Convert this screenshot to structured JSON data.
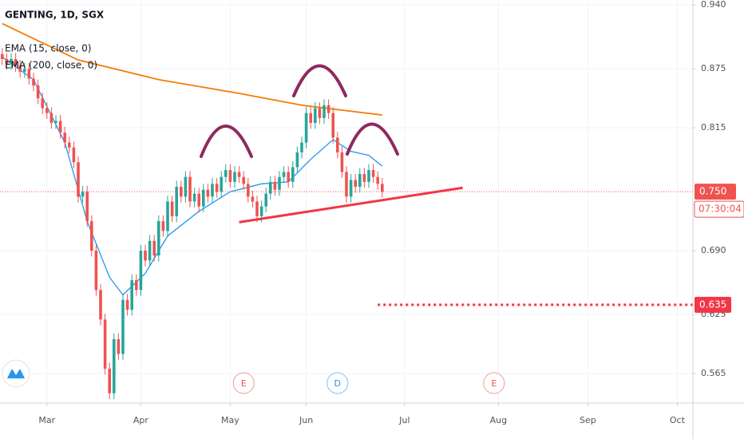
{
  "chart_data": {
    "type": "candlestick",
    "title": "GENTING, 1D, SGX",
    "up_color": "#26a69a",
    "down_color": "#ef5350",
    "grid": true,
    "xlim": [
      -0.5,
      154.5
    ],
    "xticks": [
      {
        "value": 10,
        "label": "Mar"
      },
      {
        "value": 31,
        "label": "Apr"
      },
      {
        "value": 51,
        "label": "May"
      },
      {
        "value": 68,
        "label": "Jun"
      },
      {
        "value": 90,
        "label": "Jul"
      },
      {
        "value": 111,
        "label": "Aug"
      },
      {
        "value": 131,
        "label": "Sep"
      },
      {
        "value": 151,
        "label": "Oct"
      }
    ],
    "ylim": [
      0.535,
      0.945
    ],
    "yticks": [
      {
        "value": 0.94,
        "label": "0.940"
      },
      {
        "value": 0.875,
        "label": "0.875"
      },
      {
        "value": 0.815,
        "label": "0.815"
      },
      {
        "value": 0.69,
        "label": "0.690"
      },
      {
        "value": 0.625,
        "label": "0.625"
      },
      {
        "value": 0.565,
        "label": "0.565"
      }
    ],
    "open": [
      0.89,
      0.885,
      0.88,
      0.885,
      0.878,
      0.872,
      0.875,
      0.865,
      0.858,
      0.845,
      0.835,
      0.83,
      0.82,
      0.822,
      0.81,
      0.8,
      0.795,
      0.78,
      0.745,
      0.75,
      0.72,
      0.69,
      0.65,
      0.62,
      0.57,
      0.545,
      0.6,
      0.585,
      0.64,
      0.63,
      0.66,
      0.65,
      0.69,
      0.68,
      0.7,
      0.685,
      0.72,
      0.71,
      0.74,
      0.725,
      0.755,
      0.745,
      0.765,
      0.74,
      0.748,
      0.735,
      0.752,
      0.745,
      0.758,
      0.75,
      0.765,
      0.772,
      0.76,
      0.77,
      0.765,
      0.758,
      0.745,
      0.74,
      0.725,
      0.735,
      0.748,
      0.76,
      0.752,
      0.765,
      0.77,
      0.76,
      0.775,
      0.79,
      0.8,
      0.83,
      0.82,
      0.835,
      0.825,
      0.838,
      0.83,
      0.805,
      0.79,
      0.77,
      0.745,
      0.762,
      0.755,
      0.768,
      0.76,
      0.772,
      0.765,
      0.758
    ],
    "high": [
      0.896,
      0.891,
      0.891,
      0.891,
      0.884,
      0.881,
      0.881,
      0.871,
      0.864,
      0.851,
      0.841,
      0.836,
      0.828,
      0.828,
      0.816,
      0.806,
      0.801,
      0.786,
      0.756,
      0.756,
      0.726,
      0.696,
      0.656,
      0.626,
      0.576,
      0.606,
      0.606,
      0.646,
      0.646,
      0.666,
      0.666,
      0.696,
      0.696,
      0.706,
      0.706,
      0.726,
      0.726,
      0.746,
      0.746,
      0.761,
      0.761,
      0.771,
      0.771,
      0.754,
      0.754,
      0.758,
      0.758,
      0.764,
      0.764,
      0.771,
      0.778,
      0.778,
      0.776,
      0.776,
      0.771,
      0.764,
      0.751,
      0.746,
      0.741,
      0.754,
      0.766,
      0.766,
      0.771,
      0.776,
      0.776,
      0.781,
      0.796,
      0.806,
      0.836,
      0.836,
      0.841,
      0.841,
      0.844,
      0.844,
      0.836,
      0.811,
      0.796,
      0.776,
      0.768,
      0.768,
      0.774,
      0.774,
      0.778,
      0.778,
      0.771,
      0.764
    ],
    "low": [
      0.879,
      0.874,
      0.874,
      0.872,
      0.866,
      0.866,
      0.859,
      0.852,
      0.839,
      0.829,
      0.824,
      0.814,
      0.814,
      0.804,
      0.794,
      0.789,
      0.774,
      0.739,
      0.739,
      0.714,
      0.684,
      0.644,
      0.614,
      0.564,
      0.539,
      0.539,
      0.579,
      0.579,
      0.624,
      0.624,
      0.644,
      0.644,
      0.674,
      0.674,
      0.679,
      0.679,
      0.704,
      0.704,
      0.719,
      0.719,
      0.739,
      0.739,
      0.734,
      0.734,
      0.729,
      0.729,
      0.739,
      0.739,
      0.744,
      0.744,
      0.759,
      0.754,
      0.754,
      0.759,
      0.752,
      0.739,
      0.734,
      0.719,
      0.719,
      0.729,
      0.742,
      0.746,
      0.746,
      0.759,
      0.754,
      0.754,
      0.769,
      0.784,
      0.794,
      0.814,
      0.814,
      0.819,
      0.819,
      0.824,
      0.799,
      0.784,
      0.764,
      0.739,
      0.739,
      0.749,
      0.749,
      0.754,
      0.754,
      0.759,
      0.752,
      0.744
    ],
    "close": [
      0.885,
      0.88,
      0.885,
      0.878,
      0.872,
      0.875,
      0.865,
      0.858,
      0.845,
      0.835,
      0.83,
      0.82,
      0.822,
      0.81,
      0.8,
      0.795,
      0.78,
      0.745,
      0.75,
      0.72,
      0.69,
      0.65,
      0.62,
      0.57,
      0.545,
      0.6,
      0.585,
      0.64,
      0.63,
      0.66,
      0.65,
      0.69,
      0.68,
      0.7,
      0.685,
      0.72,
      0.71,
      0.74,
      0.725,
      0.755,
      0.745,
      0.765,
      0.74,
      0.748,
      0.735,
      0.752,
      0.745,
      0.758,
      0.75,
      0.765,
      0.772,
      0.76,
      0.77,
      0.765,
      0.758,
      0.745,
      0.74,
      0.725,
      0.735,
      0.748,
      0.76,
      0.752,
      0.765,
      0.77,
      0.76,
      0.775,
      0.79,
      0.8,
      0.83,
      0.82,
      0.835,
      0.825,
      0.838,
      0.83,
      0.805,
      0.79,
      0.77,
      0.745,
      0.762,
      0.755,
      0.768,
      0.76,
      0.772,
      0.765,
      0.758,
      0.75
    ],
    "series": [
      {
        "name": "EMA (15, close, 0)",
        "color": "#2196f3",
        "x": [
          0,
          7,
          14,
          19,
          24,
          27,
          32,
          37,
          44,
          51,
          58,
          64,
          69,
          74,
          78,
          82,
          85
        ],
        "values": [
          0.887,
          0.864,
          0.8,
          0.72,
          0.663,
          0.645,
          0.667,
          0.705,
          0.73,
          0.75,
          0.758,
          0.76,
          0.783,
          0.803,
          0.791,
          0.787,
          0.776
        ]
      },
      {
        "name": "EMA (200, close, 0)",
        "color": "#f57c00",
        "x": [
          0,
          17,
          35,
          53,
          67,
          85
        ],
        "values": [
          0.921,
          0.884,
          0.864,
          0.85,
          0.838,
          0.828
        ]
      }
    ],
    "price_line": {
      "value": 0.75,
      "label": "0.750",
      "countdown": "07:30:04"
    },
    "alert_line": {
      "value": 0.635,
      "label": "0.635",
      "x_start": 84
    },
    "trendline": {
      "x": [
        53,
        103
      ],
      "values": [
        0.719,
        0.754
      ]
    },
    "events": [
      {
        "x": 54,
        "label": "E",
        "color": "#ef5350"
      },
      {
        "x": 75,
        "label": "D",
        "color": "#2196f3"
      },
      {
        "x": 110,
        "label": "E",
        "color": "#ef5350"
      }
    ]
  }
}
